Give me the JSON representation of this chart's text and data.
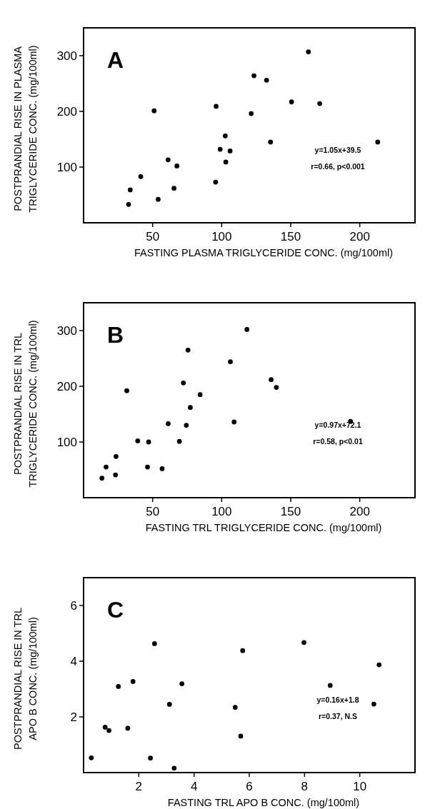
{
  "chart_data": [
    {
      "type": "scatter",
      "xlabel": "FASTING PLASMA TRIGLYCERIDE CONC. (mg/100ml)",
      "ylabel": "POSTPRANDIAL RISE IN PLASMA\nTRIGLYCERIDE  CONC. (mg/100ml)",
      "annotations": [
        "A",
        "y=1.05x+39.5",
        "r=0.66, p<0.001"
      ],
      "xlim": [
        0,
        240
      ],
      "ylim": [
        0,
        350
      ],
      "xticks": [
        50,
        100,
        150,
        200
      ],
      "yticks": [
        100,
        200,
        300
      ],
      "marker": "circle",
      "series": [
        {
          "color": "#000000",
          "x": [
            162.8,
            123.4,
            132.5,
            51.1,
            96,
            121.4,
            150.6,
            171,
            102.6,
            98.9,
            106.1,
            103,
            135.4,
            213,
            61.2,
            67.6,
            41.4,
            33.8,
            65.5,
            95.6,
            54,
            32.6
          ],
          "values": [
            307,
            264,
            256,
            201,
            209,
            196,
            217,
            214,
            156,
            132,
            129,
            109,
            145,
            145,
            113,
            102,
            83,
            59,
            62,
            73,
            42,
            33
          ]
        }
      ]
    },
    {
      "type": "scatter",
      "xlabel": "FASTING TRL TRIGLYCERIDE CONC. (mg/100ml)",
      "ylabel": "POSTPRANDIAL RISE IN TRL\nTRIGLYCERIDE CONC. (mg/100ml)",
      "annotations": [
        "B",
        "y=0.97x+72.1",
        "r=0.58, p<0.01"
      ],
      "xlim": [
        0,
        240
      ],
      "ylim": [
        0,
        350
      ],
      "xticks": [
        50,
        100,
        150,
        200
      ],
      "yticks": [
        100,
        200,
        300
      ],
      "marker": "circle",
      "series": [
        {
          "color": "#000000",
          "x": [
            118.3,
            75.6,
            106.3,
            31.3,
            72.3,
            135.8,
            139.6,
            84.4,
            77.3,
            61.3,
            74.4,
            109,
            193.3,
            39.2,
            47.1,
            69.4,
            23.5,
            16.3,
            23.1,
            46.3,
            56.9,
            13.3
          ],
          "values": [
            302,
            265,
            244,
            192,
            206,
            212,
            198,
            185,
            162,
            133,
            130,
            136,
            137,
            102,
            100,
            101,
            74,
            55,
            41,
            55,
            52,
            35
          ]
        }
      ]
    },
    {
      "type": "scatter",
      "xlabel": "FASTING TRL APO B CONC. (mg/100ml)",
      "ylabel": "POSTPRANDIAL RISE IN TRL\nAPO B CONC. (mg/100ml)",
      "annotations": [
        "C",
        "y=0.16x+1.8",
        "r=0.37, N.S"
      ],
      "xlim": [
        0,
        12
      ],
      "ylim": [
        0,
        7
      ],
      "xticks": [
        2,
        4,
        6,
        8,
        10
      ],
      "yticks": [
        2,
        4,
        6
      ],
      "marker": "circle",
      "series": [
        {
          "color": "#000000",
          "x": [
            2.57,
            5.76,
            7.98,
            10.7,
            1.26,
            1.79,
            3.56,
            8.93,
            3.11,
            5.49,
            10.51,
            0.78,
            0.92,
            1.6,
            5.69,
            0.28,
            2.42,
            3.28
          ],
          "values": [
            4.63,
            4.38,
            4.67,
            3.87,
            3.09,
            3.27,
            3.19,
            3.13,
            2.45,
            2.34,
            2.46,
            1.63,
            1.51,
            1.59,
            1.31,
            0.53,
            0.52,
            0.16
          ]
        }
      ]
    }
  ]
}
